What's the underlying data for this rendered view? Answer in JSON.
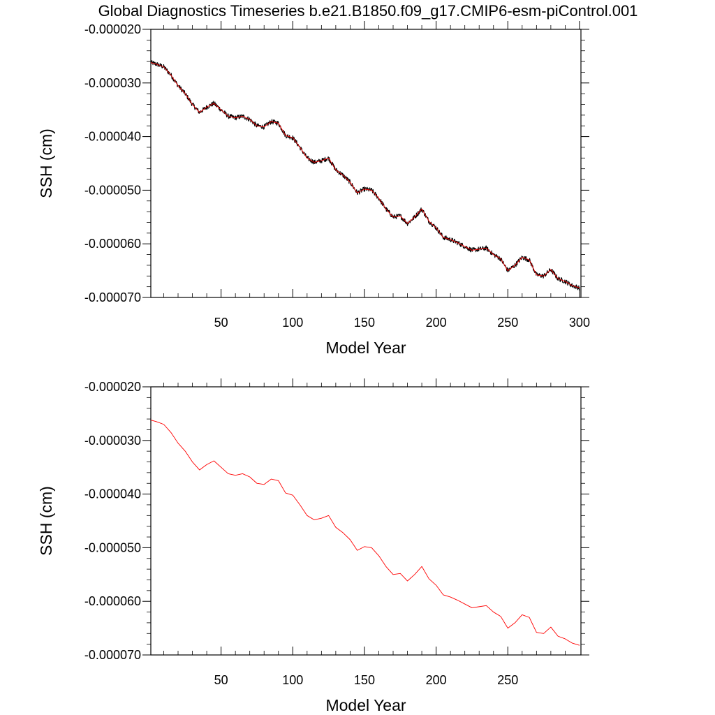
{
  "title": "Global Diagnostics Timeseries b.e21.B1850.f09_g17.CMIP6-esm-piControl.001",
  "colors": {
    "black_series": "#000000",
    "red_series": "#ff0000",
    "axes": "#000000"
  },
  "chart_data": [
    {
      "type": "line",
      "panel": "top",
      "xlabel": "Model Year",
      "ylabel": "SSH (cm)",
      "xlim": [
        1,
        301
      ],
      "ylim": [
        -7e-05,
        -2e-05
      ],
      "xticks": [
        50,
        100,
        150,
        200,
        250,
        300
      ],
      "xtick_labels": [
        "50",
        "100",
        "150",
        "200",
        "250",
        "300"
      ],
      "yticks": [
        -2e-05,
        -3e-05,
        -4e-05,
        -5e-05,
        -6e-05,
        -7e-05
      ],
      "ytick_labels": [
        "-0.000020",
        "-0.000030",
        "-0.000040",
        "-0.000050",
        "-0.000060",
        "-0.000070"
      ],
      "grid": false,
      "series": [
        {
          "color": "#000000",
          "note_style": "monthly",
          "x": [
            1,
            5,
            10,
            15,
            20,
            25,
            30,
            35,
            40,
            45,
            50,
            55,
            60,
            65,
            70,
            75,
            80,
            85,
            90,
            95,
            100,
            105,
            110,
            115,
            120,
            125,
            130,
            135,
            140,
            145,
            150,
            155,
            160,
            165,
            170,
            175,
            180,
            185,
            190,
            195,
            200,
            205,
            210,
            215,
            220,
            225,
            230,
            235,
            240,
            245,
            250,
            255,
            260,
            265,
            270,
            275,
            280,
            285,
            290,
            295,
            300
          ],
          "values": [
            -2.62e-05,
            -2.65e-05,
            -2.7e-05,
            -2.85e-05,
            -3.05e-05,
            -3.2e-05,
            -3.4e-05,
            -3.55e-05,
            -3.45e-05,
            -3.38e-05,
            -3.5e-05,
            -3.62e-05,
            -3.65e-05,
            -3.62e-05,
            -3.68e-05,
            -3.8e-05,
            -3.82e-05,
            -3.72e-05,
            -3.75e-05,
            -3.98e-05,
            -4.02e-05,
            -4.2e-05,
            -4.4e-05,
            -4.48e-05,
            -4.45e-05,
            -4.4e-05,
            -4.62e-05,
            -4.72e-05,
            -4.85e-05,
            -5.05e-05,
            -4.98e-05,
            -5e-05,
            -5.15e-05,
            -5.35e-05,
            -5.5e-05,
            -5.48e-05,
            -5.62e-05,
            -5.5e-05,
            -5.35e-05,
            -5.58e-05,
            -5.7e-05,
            -5.88e-05,
            -5.92e-05,
            -5.98e-05,
            -6.05e-05,
            -6.12e-05,
            -6.1e-05,
            -6.08e-05,
            -6.2e-05,
            -6.28e-05,
            -6.5e-05,
            -6.4e-05,
            -6.25e-05,
            -6.3e-05,
            -6.58e-05,
            -6.6e-05,
            -6.48e-05,
            -6.65e-05,
            -6.7e-05,
            -6.78e-05,
            -6.82e-05
          ]
        },
        {
          "color": "#ff0000",
          "note_style": "annual",
          "x": [
            1,
            5,
            10,
            15,
            20,
            25,
            30,
            35,
            40,
            45,
            50,
            55,
            60,
            65,
            70,
            75,
            80,
            85,
            90,
            95,
            100,
            105,
            110,
            115,
            120,
            125,
            130,
            135,
            140,
            145,
            150,
            155,
            160,
            165,
            170,
            175,
            180,
            185,
            190,
            195,
            200,
            205,
            210,
            215,
            220,
            225,
            230,
            235,
            240,
            245,
            250,
            255,
            260,
            265,
            270,
            275,
            280,
            285,
            290,
            295,
            300
          ],
          "values": [
            -2.62e-05,
            -2.65e-05,
            -2.7e-05,
            -2.85e-05,
            -3.05e-05,
            -3.2e-05,
            -3.4e-05,
            -3.55e-05,
            -3.45e-05,
            -3.38e-05,
            -3.5e-05,
            -3.62e-05,
            -3.65e-05,
            -3.62e-05,
            -3.68e-05,
            -3.8e-05,
            -3.82e-05,
            -3.72e-05,
            -3.75e-05,
            -3.98e-05,
            -4.02e-05,
            -4.2e-05,
            -4.4e-05,
            -4.48e-05,
            -4.45e-05,
            -4.4e-05,
            -4.62e-05,
            -4.72e-05,
            -4.85e-05,
            -5.05e-05,
            -4.98e-05,
            -5e-05,
            -5.15e-05,
            -5.35e-05,
            -5.5e-05,
            -5.48e-05,
            -5.62e-05,
            -5.5e-05,
            -5.35e-05,
            -5.58e-05,
            -5.7e-05,
            -5.88e-05,
            -5.92e-05,
            -5.98e-05,
            -6.05e-05,
            -6.12e-05,
            -6.1e-05,
            -6.08e-05,
            -6.2e-05,
            -6.28e-05,
            -6.5e-05,
            -6.4e-05,
            -6.25e-05,
            -6.3e-05,
            -6.58e-05,
            -6.6e-05,
            -6.48e-05,
            -6.65e-05,
            -6.7e-05,
            -6.78e-05,
            -6.82e-05
          ]
        }
      ]
    },
    {
      "type": "line",
      "panel": "bottom",
      "xlabel": "Model Year",
      "ylabel": "SSH (cm)",
      "xlim": [
        1,
        301
      ],
      "ylim": [
        -7e-05,
        -2e-05
      ],
      "xticks": [
        50,
        100,
        150,
        200,
        250
      ],
      "xtick_labels": [
        "50",
        "100",
        "150",
        "200",
        "250"
      ],
      "yticks": [
        -2e-05,
        -3e-05,
        -4e-05,
        -5e-05,
        -6e-05,
        -7e-05
      ],
      "ytick_labels": [
        "-0.000020",
        "-0.000030",
        "-0.000040",
        "-0.000050",
        "-0.000060",
        "-0.000070"
      ],
      "grid": false,
      "series": [
        {
          "color": "#ff0000",
          "x": [
            1,
            5,
            10,
            15,
            20,
            25,
            30,
            35,
            40,
            45,
            50,
            55,
            60,
            65,
            70,
            75,
            80,
            85,
            90,
            95,
            100,
            105,
            110,
            115,
            120,
            125,
            130,
            135,
            140,
            145,
            150,
            155,
            160,
            165,
            170,
            175,
            180,
            185,
            190,
            195,
            200,
            205,
            210,
            215,
            220,
            225,
            230,
            235,
            240,
            245,
            250,
            255,
            260,
            265,
            270,
            275,
            280,
            285,
            290,
            295,
            300
          ],
          "values": [
            -2.62e-05,
            -2.65e-05,
            -2.7e-05,
            -2.85e-05,
            -3.05e-05,
            -3.2e-05,
            -3.4e-05,
            -3.55e-05,
            -3.45e-05,
            -3.38e-05,
            -3.5e-05,
            -3.62e-05,
            -3.65e-05,
            -3.62e-05,
            -3.68e-05,
            -3.8e-05,
            -3.82e-05,
            -3.72e-05,
            -3.75e-05,
            -3.98e-05,
            -4.02e-05,
            -4.2e-05,
            -4.4e-05,
            -4.48e-05,
            -4.45e-05,
            -4.4e-05,
            -4.62e-05,
            -4.72e-05,
            -4.85e-05,
            -5.05e-05,
            -4.98e-05,
            -5e-05,
            -5.15e-05,
            -5.35e-05,
            -5.5e-05,
            -5.48e-05,
            -5.62e-05,
            -5.5e-05,
            -5.35e-05,
            -5.58e-05,
            -5.7e-05,
            -5.88e-05,
            -5.92e-05,
            -5.98e-05,
            -6.05e-05,
            -6.12e-05,
            -6.1e-05,
            -6.08e-05,
            -6.2e-05,
            -6.28e-05,
            -6.5e-05,
            -6.4e-05,
            -6.25e-05,
            -6.3e-05,
            -6.58e-05,
            -6.6e-05,
            -6.48e-05,
            -6.65e-05,
            -6.7e-05,
            -6.78e-05,
            -6.82e-05
          ]
        }
      ]
    }
  ]
}
